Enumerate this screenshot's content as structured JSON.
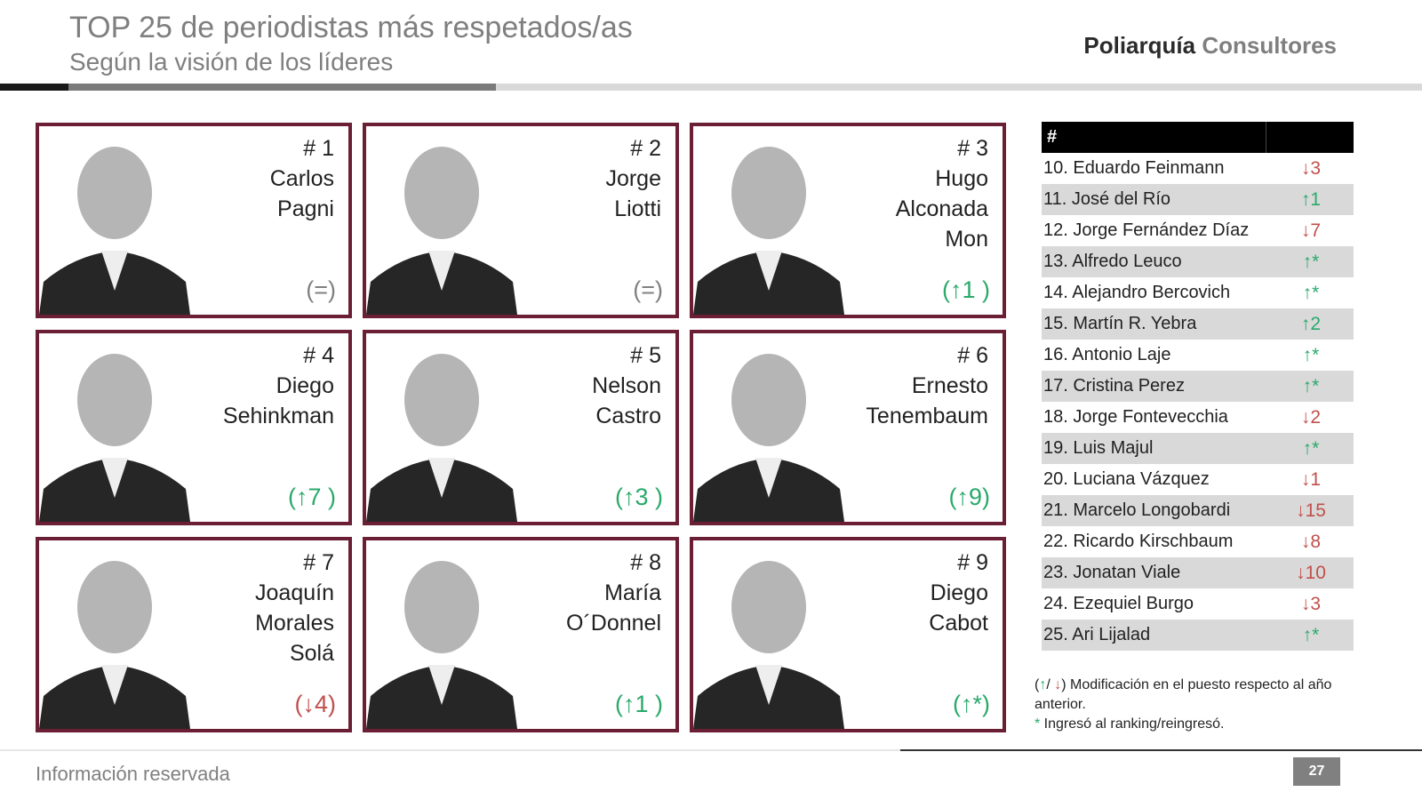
{
  "header": {
    "title": "TOP 25 de periodistas más respetados/as",
    "subtitle": "Según la visión de los líderes",
    "logo_part1": "Poliarquía",
    "logo_part2": "Consultores"
  },
  "colors": {
    "up": "#2aa96b",
    "down": "#c0504d",
    "same": "#808080",
    "card_border": "#6b1f35"
  },
  "cards": [
    {
      "rank": "# 1",
      "name_lines": [
        "Carlos",
        "Pagni"
      ],
      "change": "(=)",
      "trend": "same"
    },
    {
      "rank": "# 2",
      "name_lines": [
        "Jorge",
        "Liotti"
      ],
      "change": "(=)",
      "trend": "same"
    },
    {
      "rank": "# 3",
      "name_lines": [
        "Hugo",
        "Alconada",
        "Mon"
      ],
      "change": "(↑1 )",
      "trend": "up"
    },
    {
      "rank": "# 4",
      "name_lines": [
        "Diego",
        "Sehinkman"
      ],
      "change": "(↑7 )",
      "trend": "up"
    },
    {
      "rank": "# 5",
      "name_lines": [
        "Nelson",
        "Castro"
      ],
      "change": "(↑3 )",
      "trend": "up"
    },
    {
      "rank": "# 6",
      "name_lines": [
        "Ernesto",
        "Tenembaum"
      ],
      "change": "(↑9)",
      "trend": "up"
    },
    {
      "rank": "# 7",
      "name_lines": [
        "Joaquín",
        "Morales",
        "Solá"
      ],
      "change": "(↓4)",
      "trend": "down"
    },
    {
      "rank": "# 8",
      "name_lines": [
        "María",
        "O´Donnel"
      ],
      "change": "(↑1 )",
      "trend": "up"
    },
    {
      "rank": "# 9",
      "name_lines": [
        "Diego",
        "Cabot"
      ],
      "change": "(↑*)",
      "trend": "up"
    }
  ],
  "table": {
    "header": "#",
    "rows": [
      {
        "name": "10. Eduardo Feinmann",
        "change": "↓3",
        "trend": "down"
      },
      {
        "name": "11. José del Río",
        "change": "↑1",
        "trend": "up"
      },
      {
        "name": "12. Jorge Fernández Díaz",
        "change": "↓7",
        "trend": "down"
      },
      {
        "name": "13. Alfredo Leuco",
        "change": "↑*",
        "trend": "up"
      },
      {
        "name": "14. Alejandro Bercovich",
        "change": "↑*",
        "trend": "up"
      },
      {
        "name": "15. Martín R. Yebra",
        "change": "↑2",
        "trend": "up"
      },
      {
        "name": "16. Antonio Laje",
        "change": "↑*",
        "trend": "up"
      },
      {
        "name": "17. Cristina Perez",
        "change": "↑*",
        "trend": "up"
      },
      {
        "name": "18. Jorge Fontevecchia",
        "change": "↓2",
        "trend": "down"
      },
      {
        "name": "19. Luis Majul",
        "change": "↑*",
        "trend": "up"
      },
      {
        "name": "20. Luciana Vázquez",
        "change": "↓1",
        "trend": "down"
      },
      {
        "name": "21. Marcelo Longobardi",
        "change": "↓15",
        "trend": "down"
      },
      {
        "name": "22. Ricardo Kirschbaum",
        "change": "↓8",
        "trend": "down"
      },
      {
        "name": "23. Jonatan Viale",
        "change": "↓10",
        "trend": "down"
      },
      {
        "name": "24. Ezequiel Burgo",
        "change": "↓3",
        "trend": "down"
      },
      {
        "name": "25. Ari Lijalad",
        "change": "↑*",
        "trend": "up"
      }
    ]
  },
  "legend": {
    "open": "(",
    "up_arrow": "↑",
    "slash": "/ ",
    "down_arrow": "↓",
    "text": ") Modificación en el puesto respecto al año anterior.",
    "asterisk": "*",
    "asterisk_text": " Ingresó al ranking/reingresó."
  },
  "footer": {
    "text": "Información reservada",
    "page": "27"
  }
}
